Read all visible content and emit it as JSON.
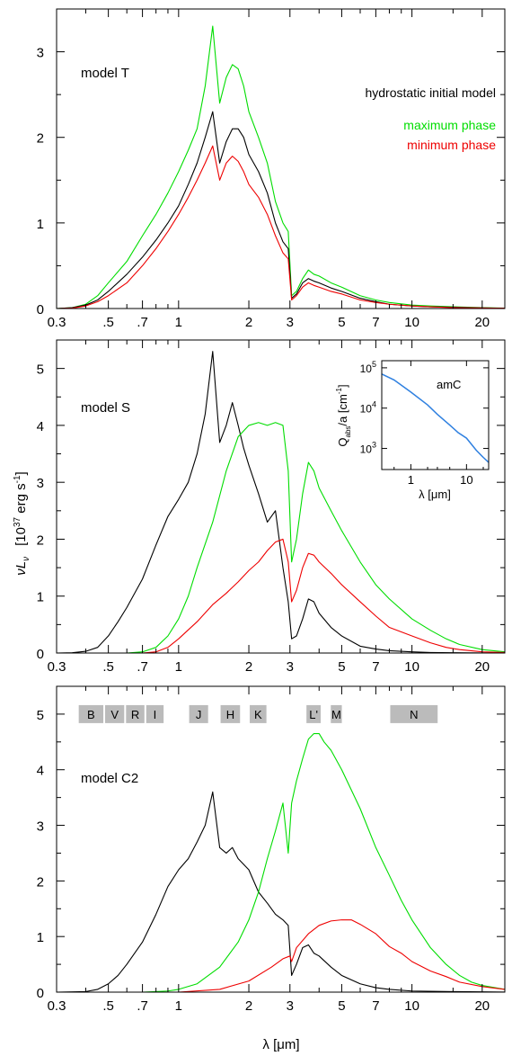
{
  "figure": {
    "ylabel": "νL_ν  [10^37 erg s^-1]",
    "ylabel_parts": [
      "νL",
      "ν",
      "[10",
      "37",
      " erg s",
      "-1",
      "]"
    ],
    "xlabel": "λ   [μm]"
  },
  "chart_data": [
    {
      "type": "line",
      "panel": "top",
      "annotation": "model T",
      "xscale": "log",
      "xlim": [
        0.3,
        25
      ],
      "ylim": [
        0,
        3.5
      ],
      "xticks": [
        0.3,
        0.5,
        0.7,
        1,
        2,
        3,
        5,
        7,
        10,
        20
      ],
      "xticklabels": [
        "0.3",
        ".5",
        ".7",
        "1",
        "2",
        "3",
        "5",
        "7",
        "10",
        "20"
      ],
      "yticks": [
        0,
        1,
        2,
        3
      ],
      "yticklabels": [
        "0",
        "1",
        "2",
        "3"
      ],
      "legend": {
        "position": "top-right",
        "entries": [
          {
            "label": "hydrostatic initial model",
            "color": "#000000"
          },
          {
            "label": "maximum phase",
            "color": "#00dd00"
          },
          {
            "label": "minimum phase",
            "color": "#ee0000"
          }
        ]
      },
      "series": [
        {
          "color": "#00dd00",
          "x": [
            0.3,
            0.35,
            0.4,
            0.45,
            0.5,
            0.6,
            0.7,
            0.8,
            0.9,
            1.0,
            1.1,
            1.2,
            1.3,
            1.4,
            1.5,
            1.6,
            1.7,
            1.8,
            1.9,
            2.0,
            2.2,
            2.4,
            2.6,
            2.8,
            2.95,
            3.05,
            3.2,
            3.4,
            3.6,
            3.8,
            4.0,
            4.5,
            5.0,
            6.0,
            7.0,
            8.0,
            10.0,
            12.0,
            15.0,
            20.0,
            25.0
          ],
          "y": [
            0,
            0.01,
            0.05,
            0.15,
            0.3,
            0.55,
            0.85,
            1.1,
            1.35,
            1.6,
            1.85,
            2.1,
            2.6,
            3.3,
            2.4,
            2.7,
            2.85,
            2.8,
            2.6,
            2.3,
            2.0,
            1.7,
            1.25,
            1.0,
            0.9,
            0.15,
            0.2,
            0.35,
            0.45,
            0.4,
            0.38,
            0.3,
            0.25,
            0.15,
            0.1,
            0.07,
            0.04,
            0.03,
            0.02,
            0.01,
            0.005
          ]
        },
        {
          "color": "#000000",
          "x": [
            0.3,
            0.35,
            0.4,
            0.45,
            0.5,
            0.6,
            0.7,
            0.8,
            0.9,
            1.0,
            1.1,
            1.2,
            1.3,
            1.4,
            1.5,
            1.6,
            1.7,
            1.8,
            1.9,
            2.0,
            2.2,
            2.4,
            2.6,
            2.8,
            2.95,
            3.05,
            3.2,
            3.4,
            3.6,
            3.8,
            4.0,
            4.5,
            5.0,
            6.0,
            7.0,
            8.0,
            10.0,
            12.0,
            15.0,
            20.0,
            25.0
          ],
          "y": [
            0,
            0.01,
            0.04,
            0.1,
            0.2,
            0.4,
            0.6,
            0.8,
            1.0,
            1.2,
            1.45,
            1.7,
            2.0,
            2.3,
            1.7,
            1.95,
            2.1,
            2.1,
            2.0,
            1.8,
            1.6,
            1.35,
            1.0,
            0.78,
            0.7,
            0.12,
            0.17,
            0.3,
            0.35,
            0.32,
            0.3,
            0.24,
            0.2,
            0.12,
            0.08,
            0.05,
            0.03,
            0.02,
            0.015,
            0.008,
            0.004
          ]
        },
        {
          "color": "#ee0000",
          "x": [
            0.3,
            0.35,
            0.4,
            0.45,
            0.5,
            0.6,
            0.7,
            0.8,
            0.9,
            1.0,
            1.1,
            1.2,
            1.3,
            1.4,
            1.5,
            1.6,
            1.7,
            1.8,
            1.9,
            2.0,
            2.2,
            2.4,
            2.6,
            2.8,
            2.95,
            3.05,
            3.2,
            3.4,
            3.6,
            3.8,
            4.0,
            4.5,
            5.0,
            6.0,
            7.0,
            8.0,
            10.0,
            12.0,
            15.0,
            20.0,
            25.0
          ],
          "y": [
            0,
            0.005,
            0.03,
            0.08,
            0.15,
            0.3,
            0.5,
            0.7,
            0.9,
            1.1,
            1.3,
            1.5,
            1.7,
            1.9,
            1.5,
            1.7,
            1.78,
            1.72,
            1.6,
            1.45,
            1.3,
            1.1,
            0.85,
            0.65,
            0.58,
            0.1,
            0.15,
            0.25,
            0.3,
            0.27,
            0.25,
            0.2,
            0.17,
            0.1,
            0.07,
            0.05,
            0.03,
            0.02,
            0.01,
            0.006,
            0.003
          ]
        }
      ]
    },
    {
      "type": "line",
      "panel": "middle",
      "annotation": "model S",
      "xscale": "log",
      "xlim": [
        0.3,
        25
      ],
      "ylim": [
        0,
        5.5
      ],
      "xticks": [
        0.3,
        0.5,
        0.7,
        1,
        2,
        3,
        5,
        7,
        10,
        20
      ],
      "xticklabels": [
        "0.3",
        ".5",
        ".7",
        "1",
        "2",
        "3",
        "5",
        "7",
        "10",
        "20"
      ],
      "yticks": [
        0,
        1,
        2,
        3,
        4,
        5
      ],
      "yticklabels": [
        "0",
        "1",
        "2",
        "3",
        "4",
        "5"
      ],
      "series": [
        {
          "color": "#000000",
          "x": [
            0.3,
            0.35,
            0.4,
            0.45,
            0.5,
            0.55,
            0.6,
            0.7,
            0.8,
            0.9,
            1.0,
            1.1,
            1.2,
            1.3,
            1.4,
            1.5,
            1.6,
            1.7,
            1.8,
            1.9,
            2.0,
            2.2,
            2.4,
            2.6,
            2.8,
            2.95,
            3.05,
            3.2,
            3.4,
            3.6,
            3.8,
            4.0,
            4.5,
            5.0,
            6.0,
            7.0,
            8.0,
            10.0,
            12.0,
            15.0,
            20.0,
            25.0
          ],
          "y": [
            0,
            0.005,
            0.03,
            0.1,
            0.3,
            0.55,
            0.8,
            1.3,
            1.9,
            2.4,
            2.7,
            3.0,
            3.5,
            4.2,
            5.3,
            3.7,
            4.0,
            4.4,
            4.0,
            3.6,
            3.3,
            2.8,
            2.3,
            2.5,
            1.5,
            0.9,
            0.25,
            0.3,
            0.6,
            0.95,
            0.9,
            0.7,
            0.45,
            0.3,
            0.12,
            0.07,
            0.04,
            0.02,
            0.01,
            0.005,
            0.002,
            0.001
          ]
        },
        {
          "color": "#00dd00",
          "x": [
            0.3,
            0.6,
            0.7,
            0.8,
            0.9,
            1.0,
            1.1,
            1.2,
            1.4,
            1.6,
            1.8,
            2.0,
            2.2,
            2.4,
            2.6,
            2.8,
            2.95,
            3.05,
            3.2,
            3.4,
            3.6,
            3.8,
            4.0,
            4.5,
            5.0,
            6.0,
            7.0,
            8.0,
            10.0,
            12.0,
            14.0,
            16.0,
            20.0,
            25.0
          ],
          "y": [
            0,
            0,
            0.02,
            0.1,
            0.3,
            0.6,
            1.0,
            1.5,
            2.3,
            3.2,
            3.8,
            4.0,
            4.05,
            4.0,
            4.05,
            4.0,
            3.2,
            1.6,
            2.0,
            2.8,
            3.35,
            3.2,
            2.9,
            2.5,
            2.15,
            1.6,
            1.2,
            0.95,
            0.6,
            0.4,
            0.25,
            0.15,
            0.06,
            0.02
          ]
        },
        {
          "color": "#ee0000",
          "x": [
            0.3,
            0.7,
            0.8,
            0.9,
            1.0,
            1.2,
            1.4,
            1.6,
            1.8,
            2.0,
            2.2,
            2.4,
            2.6,
            2.8,
            2.95,
            3.05,
            3.2,
            3.4,
            3.6,
            3.8,
            4.0,
            4.5,
            5.0,
            6.0,
            7.0,
            8.0,
            10.0,
            12.0,
            14.0,
            16.0,
            20.0,
            25.0
          ],
          "y": [
            0,
            0,
            0.02,
            0.1,
            0.25,
            0.55,
            0.85,
            1.05,
            1.25,
            1.45,
            1.6,
            1.8,
            1.95,
            2.0,
            1.6,
            0.9,
            1.1,
            1.5,
            1.75,
            1.72,
            1.6,
            1.4,
            1.2,
            0.9,
            0.65,
            0.45,
            0.3,
            0.18,
            0.1,
            0.06,
            0.02,
            0.01
          ]
        }
      ],
      "inset": {
        "label": "amC",
        "xlabel": "λ   [μm]",
        "ylabel": "Q_abs/a  [cm^-1]",
        "ylabel_parts": [
          "Q",
          "abs",
          "/a  [cm",
          "-1",
          "]"
        ],
        "xscale": "log",
        "yscale": "log",
        "xlim": [
          0.3,
          25
        ],
        "ylim": [
          300,
          150000
        ],
        "xticks": [
          1,
          10
        ],
        "xticklabels": [
          "1",
          "10"
        ],
        "yticks": [
          1000,
          10000,
          100000
        ],
        "yticklabels": [
          [
            "10",
            "3"
          ],
          [
            "10",
            "4"
          ],
          [
            "10",
            "5"
          ]
        ],
        "series": [
          {
            "color": "#2f80e0",
            "x": [
              0.3,
              0.5,
              1,
              2,
              3,
              5,
              7,
              10,
              15,
              20,
              25
            ],
            "y": [
              70000,
              50000,
              25000,
              12000,
              7000,
              3800,
              2500,
              1800,
              900,
              600,
              450
            ]
          }
        ]
      }
    },
    {
      "type": "line",
      "panel": "bottom",
      "annotation": "model C2",
      "xscale": "log",
      "xlim": [
        0.3,
        25
      ],
      "ylim": [
        0,
        5.5
      ],
      "xticks": [
        0.3,
        0.5,
        0.7,
        1,
        2,
        3,
        5,
        7,
        10,
        20
      ],
      "xticklabels": [
        "0.3",
        ".5",
        ".7",
        "1",
        "2",
        "3",
        "5",
        "7",
        "10",
        "20"
      ],
      "yticks": [
        0,
        1,
        2,
        3,
        4,
        5
      ],
      "yticklabels": [
        "0",
        "1",
        "2",
        "3",
        "4",
        "5"
      ],
      "bands": [
        {
          "label": "B",
          "x0": 0.37,
          "x1": 0.48
        },
        {
          "label": "V",
          "x0": 0.48,
          "x1": 0.59
        },
        {
          "label": "R",
          "x0": 0.59,
          "x1": 0.72
        },
        {
          "label": "I",
          "x0": 0.72,
          "x1": 0.87
        },
        {
          "label": "J",
          "x0": 1.1,
          "x1": 1.35
        },
        {
          "label": "H",
          "x0": 1.5,
          "x1": 1.85
        },
        {
          "label": "K",
          "x0": 2.0,
          "x1": 2.4
        },
        {
          "label": "L'",
          "x0": 3.5,
          "x1": 4.1
        },
        {
          "label": "M",
          "x0": 4.45,
          "x1": 5.05
        },
        {
          "label": "N",
          "x0": 8.0,
          "x1": 13.0
        }
      ],
      "series": [
        {
          "color": "#000000",
          "x": [
            0.3,
            0.4,
            0.45,
            0.5,
            0.55,
            0.6,
            0.7,
            0.8,
            0.9,
            1.0,
            1.1,
            1.2,
            1.3,
            1.4,
            1.5,
            1.6,
            1.7,
            1.8,
            2.0,
            2.2,
            2.4,
            2.6,
            2.8,
            2.95,
            3.05,
            3.2,
            3.4,
            3.6,
            3.8,
            4.0,
            4.5,
            5.0,
            6.0,
            7.0,
            8.0,
            10.0,
            15.0,
            20.0,
            25.0
          ],
          "y": [
            0,
            0.01,
            0.05,
            0.15,
            0.3,
            0.5,
            0.9,
            1.4,
            1.9,
            2.2,
            2.4,
            2.7,
            3.0,
            3.6,
            2.6,
            2.5,
            2.6,
            2.4,
            2.2,
            1.8,
            1.6,
            1.4,
            1.3,
            1.2,
            0.3,
            0.5,
            0.8,
            0.85,
            0.7,
            0.65,
            0.45,
            0.3,
            0.15,
            0.08,
            0.05,
            0.02,
            0.01,
            0.005,
            0.002
          ]
        },
        {
          "color": "#00dd00",
          "x": [
            0.3,
            0.7,
            0.9,
            1.0,
            1.2,
            1.5,
            1.8,
            2.0,
            2.2,
            2.4,
            2.6,
            2.8,
            2.95,
            3.05,
            3.2,
            3.4,
            3.6,
            3.8,
            4.0,
            4.2,
            4.5,
            5.0,
            6.0,
            7.0,
            8.0,
            9.0,
            10.0,
            12.0,
            14.0,
            16.0,
            18.0,
            20.0,
            25.0
          ],
          "y": [
            0,
            0,
            0.02,
            0.05,
            0.15,
            0.45,
            0.9,
            1.3,
            1.8,
            2.4,
            2.9,
            3.4,
            2.5,
            3.4,
            3.8,
            4.2,
            4.55,
            4.65,
            4.65,
            4.5,
            4.35,
            4.0,
            3.3,
            2.6,
            2.1,
            1.65,
            1.3,
            0.8,
            0.5,
            0.3,
            0.18,
            0.12,
            0.05
          ]
        },
        {
          "color": "#ee0000",
          "x": [
            0.3,
            1.0,
            1.5,
            2.0,
            2.5,
            2.8,
            3.0,
            3.05,
            3.2,
            3.6,
            4.0,
            4.5,
            5.0,
            5.5,
            6.0,
            7.0,
            8.0,
            9.0,
            10.0,
            12.0,
            14.0,
            16.0,
            20.0,
            25.0
          ],
          "y": [
            0,
            0,
            0.05,
            0.2,
            0.45,
            0.6,
            0.65,
            0.55,
            0.8,
            1.05,
            1.2,
            1.28,
            1.3,
            1.3,
            1.22,
            1.05,
            0.82,
            0.7,
            0.55,
            0.38,
            0.28,
            0.18,
            0.1,
            0.05
          ]
        }
      ]
    }
  ]
}
